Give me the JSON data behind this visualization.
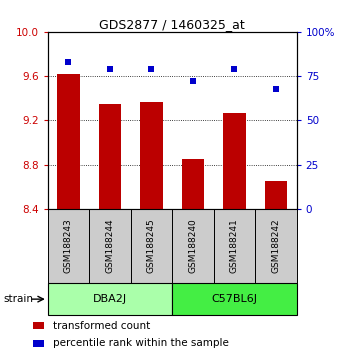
{
  "title": "GDS2877 / 1460325_at",
  "samples": [
    "GSM188243",
    "GSM188244",
    "GSM188245",
    "GSM188240",
    "GSM188241",
    "GSM188242"
  ],
  "transformed_count": [
    9.62,
    9.35,
    9.37,
    8.85,
    9.27,
    8.65
  ],
  "percentile_rank": [
    83,
    79,
    79,
    72,
    79,
    68
  ],
  "bar_color": "#bb0000",
  "dot_color": "#0000cc",
  "ylim_left": [
    8.4,
    10.0
  ],
  "ylim_right": [
    0,
    100
  ],
  "yticks_left": [
    8.4,
    8.8,
    9.2,
    9.6,
    10.0
  ],
  "yticks_right": [
    0,
    25,
    50,
    75,
    100
  ],
  "ytick_labels_right": [
    "0",
    "25",
    "50",
    "75",
    "100%"
  ],
  "groups": [
    {
      "label": "DBA2J",
      "indices": [
        0,
        1,
        2
      ],
      "color": "#aaffaa"
    },
    {
      "label": "C57BL6J",
      "indices": [
        3,
        4,
        5
      ],
      "color": "#44ee44"
    }
  ],
  "strain_label": "strain",
  "legend_items": [
    {
      "color": "#bb0000",
      "label": "transformed count"
    },
    {
      "color": "#0000cc",
      "label": "percentile rank within the sample"
    }
  ],
  "bar_width": 0.55,
  "tick_label_color_left": "#cc0000",
  "tick_label_color_right": "#0000cc",
  "label_box_color": "#cccccc",
  "grid_dotted_color": "#555555"
}
